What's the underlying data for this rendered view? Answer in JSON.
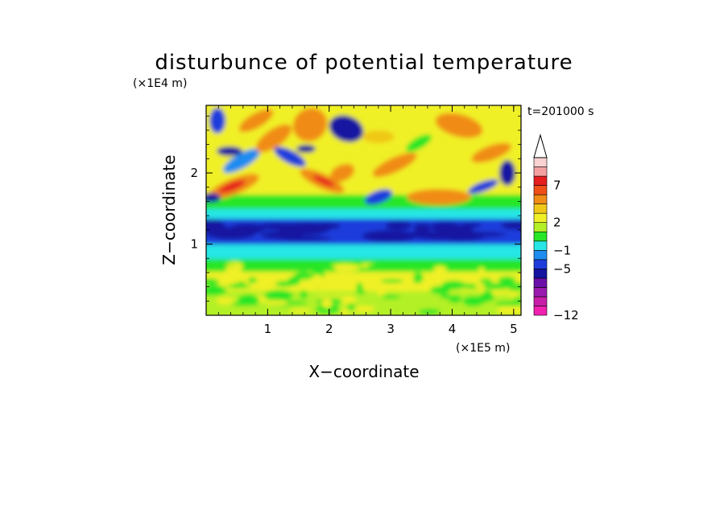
{
  "chart_data": {
    "type": "heatmap",
    "title": "disturbunce of potential temperature",
    "time_label": "t=201000 s",
    "xlabel": "X−coordinate",
    "ylabel": "Z−coordinate",
    "x_unit": "(×1E5 m)",
    "y_unit": "(×1E4 m)",
    "xlim": [
      0,
      5.12
    ],
    "ylim": [
      0,
      2.95
    ],
    "x_ticks": [
      1,
      2,
      3,
      4,
      5
    ],
    "x_tick_labels": [
      "1",
      "2",
      "3",
      "4",
      "5"
    ],
    "y_ticks": [
      1,
      2
    ],
    "y_tick_labels": [
      "1",
      "2"
    ],
    "grid": false,
    "colorbar": {
      "placement": "right",
      "levels": [
        -12,
        -5,
        -1,
        2,
        7
      ],
      "level_labels": [
        "−12",
        "−5",
        "−1",
        "2",
        "7"
      ],
      "colors": [
        "#f020b0",
        "#c81ea8",
        "#9a1ab0",
        "#6a10a8",
        "#1414a0",
        "#1e3cdc",
        "#1e8cf0",
        "#28e6e6",
        "#28e628",
        "#b4f028",
        "#f0f028",
        "#f0c818",
        "#f08c18",
        "#f05018",
        "#e61e1e",
        "#f5a0a0",
        "#fad2d2"
      ],
      "extend": "max"
    },
    "field_bands": [
      {
        "z_range": [
          0.0,
          0.4
        ],
        "dominant": "green-yellow"
      },
      {
        "z_range": [
          0.4,
          0.8
        ],
        "dominant": "green-yellow"
      },
      {
        "z_range": [
          0.8,
          1.2
        ],
        "dominant": "cyan-blue"
      },
      {
        "z_range": [
          1.2,
          1.5
        ],
        "dominant": "blue"
      },
      {
        "z_range": [
          1.5,
          2.9
        ],
        "dominant": "orange-red-blue waves"
      }
    ]
  }
}
